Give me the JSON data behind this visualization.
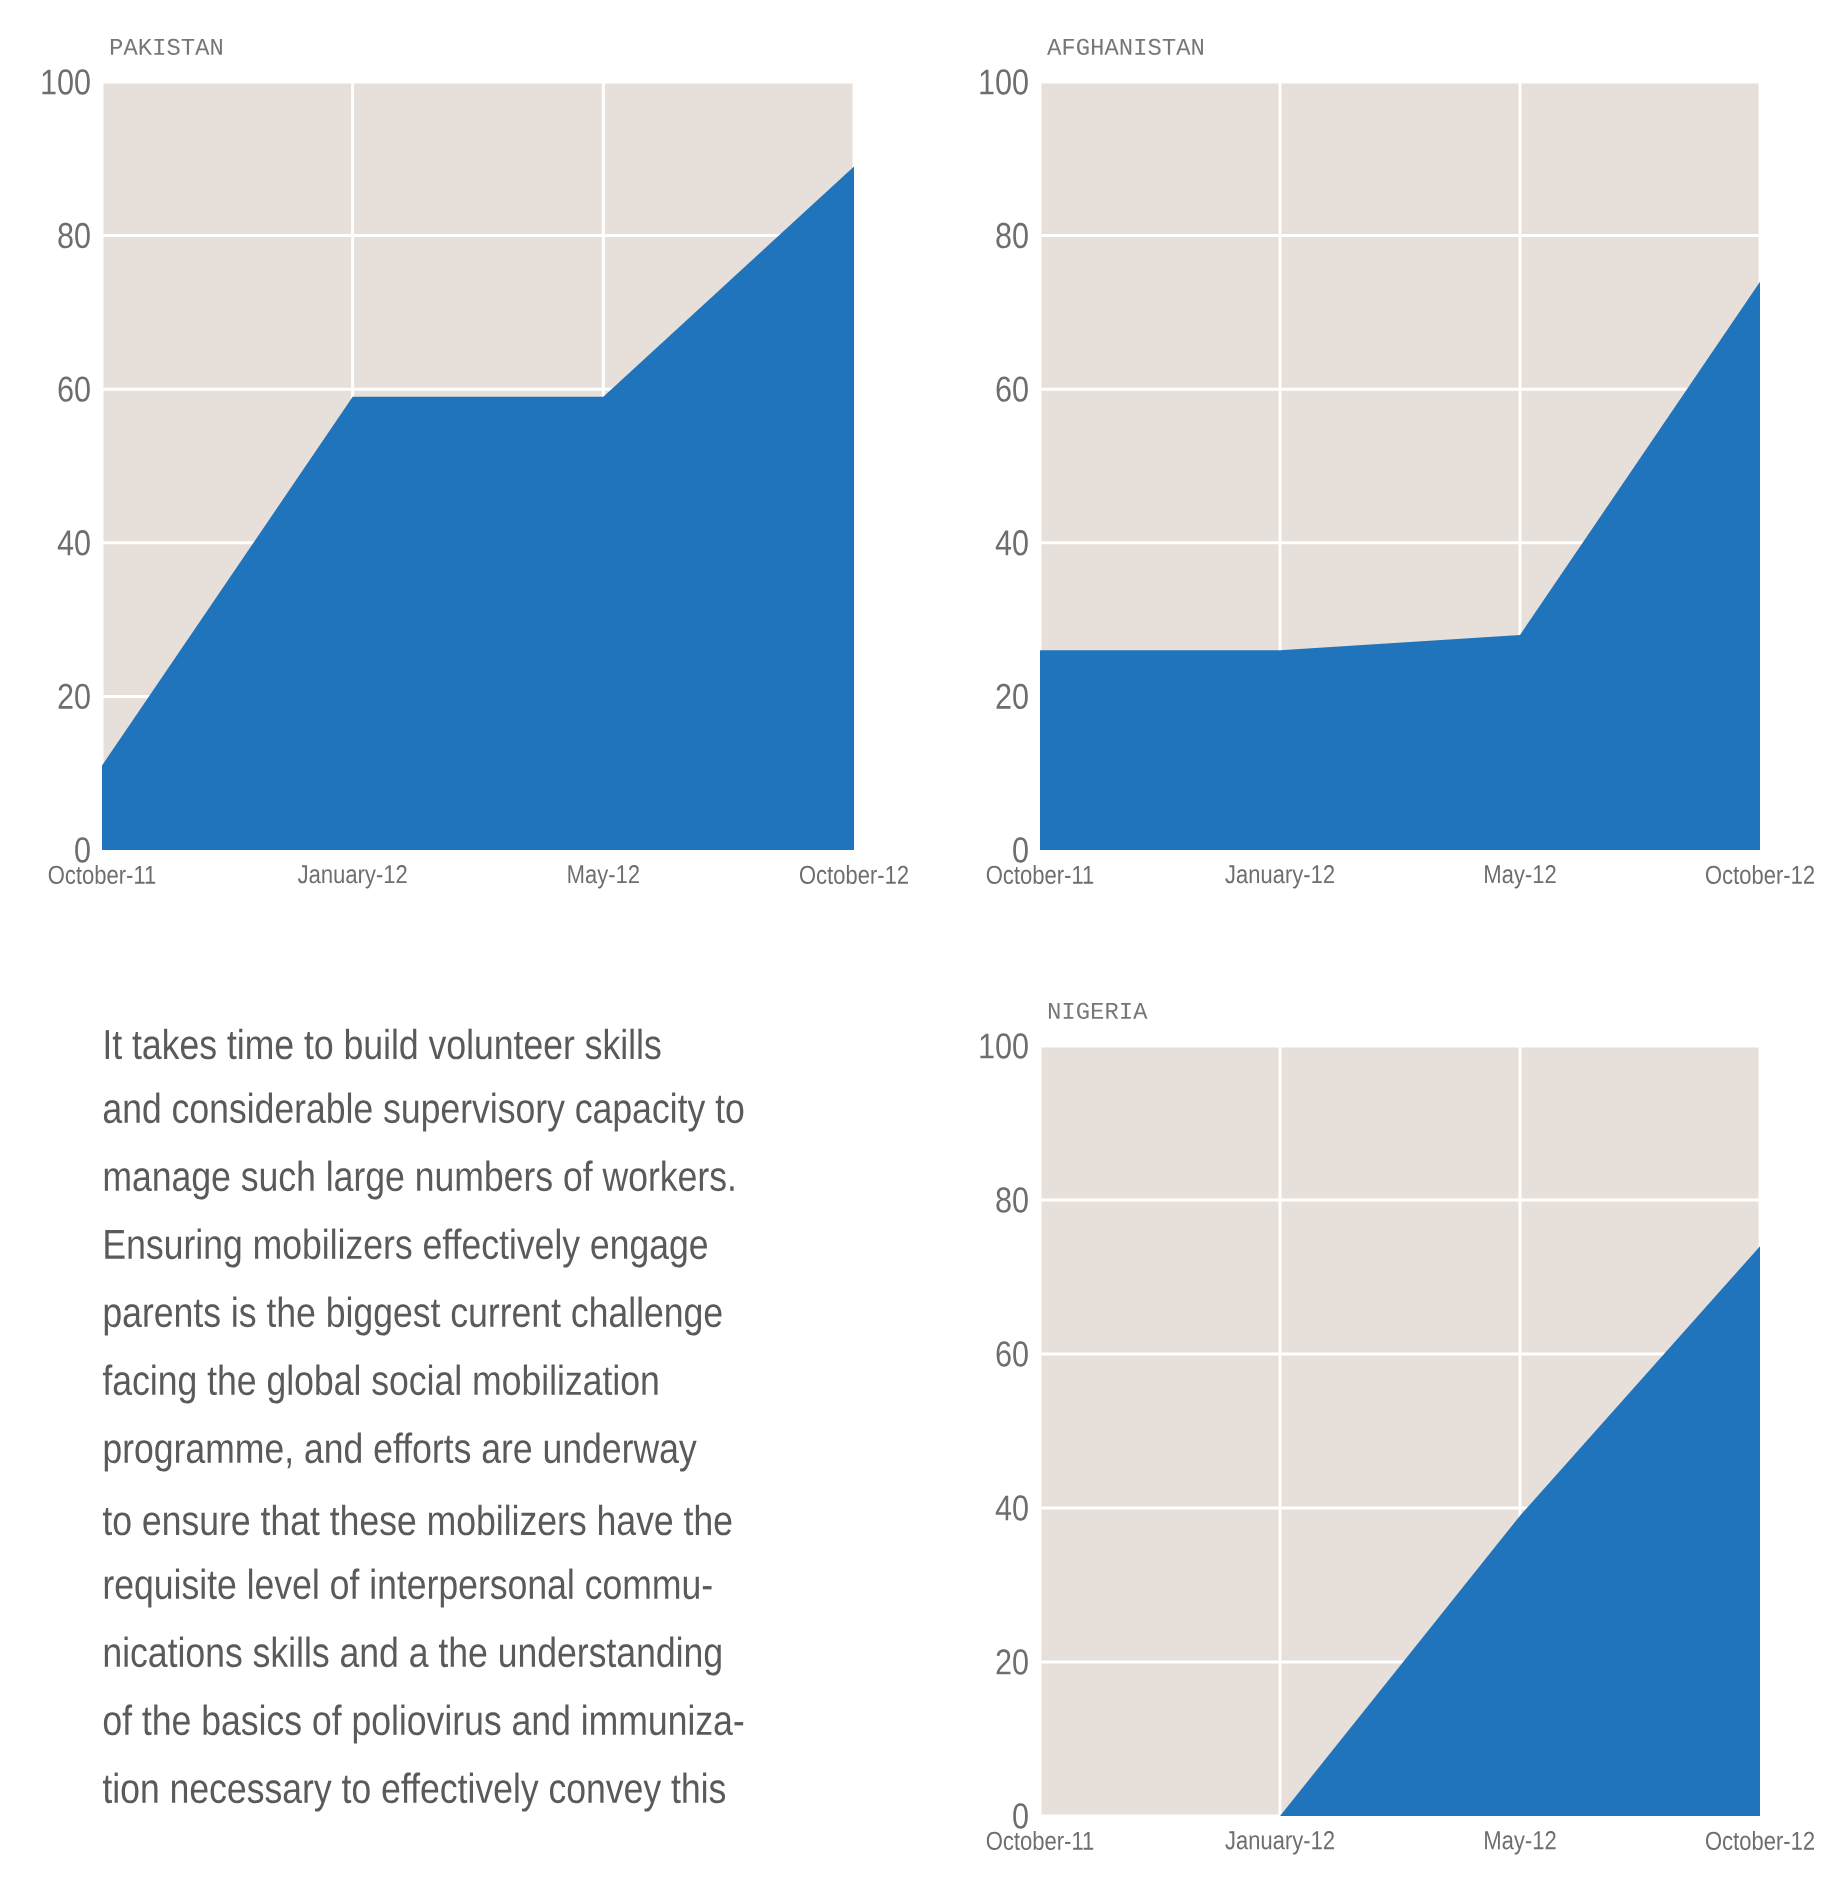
{
  "chart_data": [
    {
      "type": "area",
      "title": "PAKISTAN",
      "categories": [
        "October-11",
        "January-12",
        "May-12",
        "October-12"
      ],
      "values": [
        11,
        59,
        59,
        89
      ],
      "color": "#1f74bb",
      "ylim": [
        0,
        100
      ],
      "yticks": [
        0,
        20,
        40,
        60,
        80,
        100
      ],
      "grid": true
    },
    {
      "type": "area",
      "title": "AFGHANISTAN",
      "categories": [
        "October-11",
        "January-12",
        "May-12",
        "October-12"
      ],
      "values": [
        26,
        26,
        28,
        74
      ],
      "color": "#1f74bb",
      "ylim": [
        0,
        100
      ],
      "yticks": [
        0,
        20,
        40,
        60,
        80,
        100
      ],
      "grid": true
    },
    {
      "type": "area",
      "title": "NIGERIA",
      "categories": [
        "October-11",
        "January-12",
        "May-12",
        "October-12"
      ],
      "values": [
        0,
        0,
        39,
        74
      ],
      "color": "#1f74bb",
      "ylim": [
        0,
        100
      ],
      "yticks": [
        0,
        20,
        40,
        60,
        80,
        100
      ],
      "grid": true
    },
    {
      "type": "other",
      "annotations": [
        "It takes time to build volunteer skills",
        "and considerable supervisory capacity to",
        "manage such large numbers of workers.",
        "Ensuring mobilizers effectively engage",
        "parents is the biggest current challenge",
        "facing the global social mobilization",
        "programme, and efforts are underway",
        "to ensure that these mobilizers have the",
        "requisite level of interpersonal commu-",
        "nications skills and a the understanding",
        "of the basics of poliovirus and immuniza-",
        "tion necessary to effectively convey this"
      ]
    }
  ]
}
